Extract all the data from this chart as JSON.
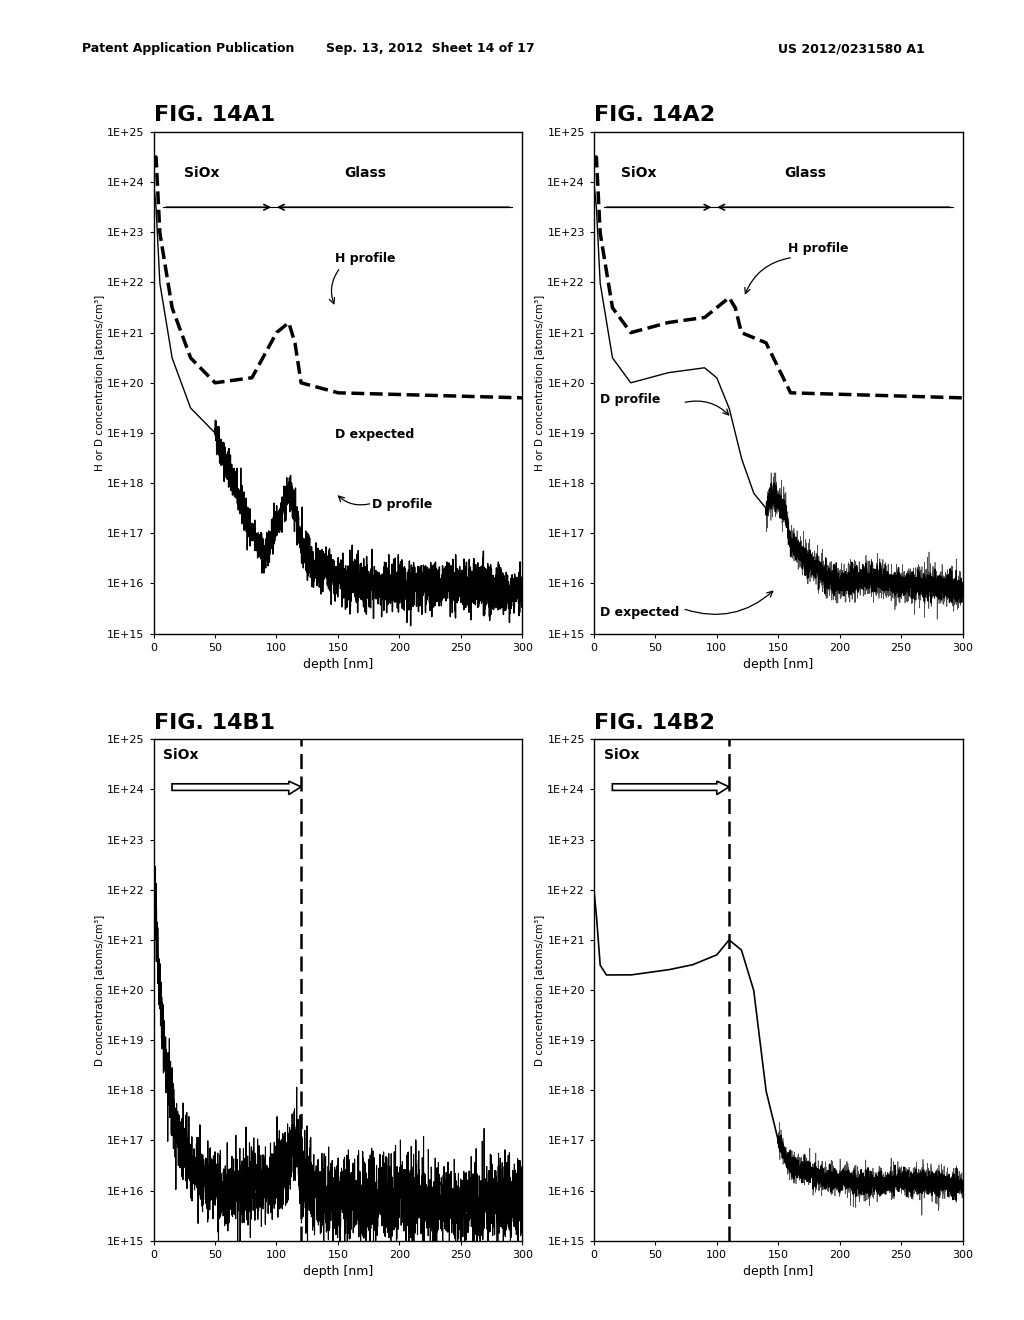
{
  "header_left": "Patent Application Publication",
  "header_mid": "Sep. 13, 2012  Sheet 14 of 17",
  "header_right": "US 2012/0231580 A1",
  "fig_labels": [
    "FIG. 14A1",
    "FIG. 14A2",
    "FIG. 14B1",
    "FIG. 14B2"
  ],
  "xlim": [
    0,
    300
  ],
  "ylim_low": 1000000000000000.0,
  "ylim_high": 1e+25,
  "xlabel": "depth [nm]",
  "ylabel_top": "H or D concentration [atoms/cm³]",
  "ylabel_bot": "D concentration [atoms/cm³]",
  "xticks": [
    0,
    50,
    100,
    150,
    200,
    250,
    300
  ],
  "ytick_exponents": [
    15,
    16,
    17,
    18,
    19,
    20,
    21,
    22,
    23,
    24,
    25
  ],
  "background_color": "#ffffff",
  "plot_color": "#000000",
  "h_kp_14a1": [
    [
      0,
      24.5
    ],
    [
      2,
      24.5
    ],
    [
      5,
      23.0
    ],
    [
      15,
      21.5
    ],
    [
      30,
      20.5
    ],
    [
      50,
      20.0
    ],
    [
      80,
      20.1
    ],
    [
      100,
      21.0
    ],
    [
      110,
      21.2
    ],
    [
      115,
      20.8
    ],
    [
      120,
      20.0
    ],
    [
      150,
      19.8
    ],
    [
      300,
      19.7
    ]
  ],
  "d_kp_14a1": [
    [
      0,
      24.0
    ],
    [
      2,
      23.5
    ],
    [
      5,
      22.0
    ],
    [
      15,
      20.5
    ],
    [
      30,
      19.5
    ],
    [
      50,
      19.0
    ],
    [
      80,
      17.0
    ],
    [
      90,
      16.5
    ],
    [
      100,
      17.2
    ],
    [
      110,
      17.8
    ],
    [
      115,
      17.5
    ],
    [
      120,
      16.8
    ],
    [
      130,
      16.3
    ],
    [
      150,
      16.1
    ],
    [
      200,
      15.9
    ],
    [
      250,
      16.0
    ],
    [
      300,
      15.8
    ]
  ],
  "h_kp_14a2": [
    [
      0,
      24.5
    ],
    [
      2,
      24.5
    ],
    [
      5,
      23.0
    ],
    [
      15,
      21.5
    ],
    [
      30,
      21.0
    ],
    [
      60,
      21.2
    ],
    [
      90,
      21.3
    ],
    [
      100,
      21.5
    ],
    [
      110,
      21.7
    ],
    [
      115,
      21.5
    ],
    [
      120,
      21.0
    ],
    [
      140,
      20.8
    ],
    [
      160,
      19.8
    ],
    [
      300,
      19.7
    ]
  ],
  "d_kp_14a2": [
    [
      0,
      24.0
    ],
    [
      2,
      23.5
    ],
    [
      5,
      22.0
    ],
    [
      15,
      20.5
    ],
    [
      30,
      20.0
    ],
    [
      60,
      20.2
    ],
    [
      90,
      20.3
    ],
    [
      100,
      20.1
    ],
    [
      110,
      19.5
    ],
    [
      120,
      18.5
    ],
    [
      130,
      17.8
    ],
    [
      140,
      17.5
    ],
    [
      145,
      17.8
    ],
    [
      155,
      17.5
    ],
    [
      160,
      16.8
    ],
    [
      180,
      16.3
    ],
    [
      200,
      16.0
    ],
    [
      220,
      16.1
    ],
    [
      250,
      16.0
    ],
    [
      300,
      15.9
    ]
  ],
  "d_kp_14b1": [
    [
      0,
      22.0
    ],
    [
      2,
      21.5
    ],
    [
      5,
      20.0
    ],
    [
      10,
      18.5
    ],
    [
      20,
      17.0
    ],
    [
      30,
      16.5
    ],
    [
      50,
      16.0
    ],
    [
      80,
      16.1
    ],
    [
      100,
      16.2
    ],
    [
      110,
      16.5
    ],
    [
      115,
      17.0
    ],
    [
      118,
      16.8
    ],
    [
      120,
      16.3
    ],
    [
      130,
      16.0
    ],
    [
      150,
      15.8
    ],
    [
      200,
      15.9
    ],
    [
      250,
      15.7
    ],
    [
      300,
      15.8
    ]
  ],
  "d_kp_14b2": [
    [
      0,
      22.0
    ],
    [
      2,
      21.5
    ],
    [
      5,
      20.5
    ],
    [
      10,
      20.3
    ],
    [
      30,
      20.3
    ],
    [
      60,
      20.4
    ],
    [
      80,
      20.5
    ],
    [
      100,
      20.7
    ],
    [
      110,
      21.0
    ],
    [
      120,
      20.8
    ],
    [
      130,
      20.0
    ],
    [
      140,
      18.0
    ],
    [
      150,
      17.0
    ],
    [
      160,
      16.5
    ],
    [
      180,
      16.3
    ],
    [
      200,
      16.2
    ],
    [
      220,
      16.1
    ],
    [
      250,
      16.2
    ],
    [
      300,
      16.1
    ]
  ]
}
